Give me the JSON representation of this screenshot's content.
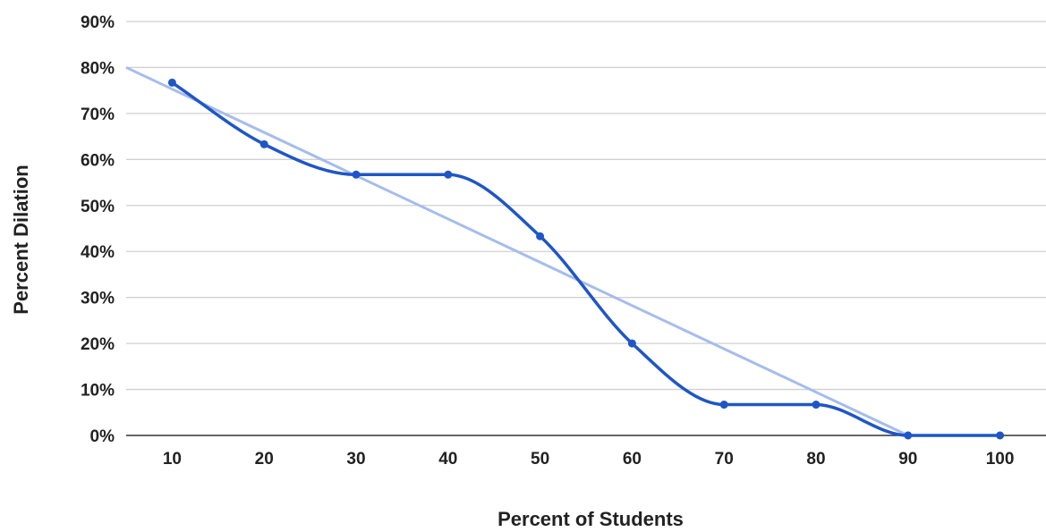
{
  "chart_data": {
    "type": "line",
    "xlabel": "Percent of Students",
    "ylabel": "Percent Dilation",
    "x": [
      10,
      20,
      30,
      40,
      50,
      60,
      70,
      80,
      90,
      100
    ],
    "x_ticks": [
      "10",
      "20",
      "30",
      "40",
      "50",
      "60",
      "70",
      "80",
      "90",
      "100"
    ],
    "y_ticks": [
      "0%",
      "10%",
      "20%",
      "30%",
      "40%",
      "50%",
      "60%",
      "70%",
      "80%",
      "90%"
    ],
    "ylim": [
      0,
      90
    ],
    "xlim": [
      5,
      105
    ],
    "grid": true,
    "series": [
      {
        "values": [
          76.7,
          63.3,
          56.7,
          56.7,
          43.3,
          20,
          6.7,
          6.7,
          0,
          0
        ],
        "color": "#1f56c6",
        "smooth": true,
        "markers": true
      }
    ],
    "trendline": {
      "x": [
        5,
        90
      ],
      "y": [
        80,
        0
      ],
      "color": "#a5bdeb"
    }
  }
}
